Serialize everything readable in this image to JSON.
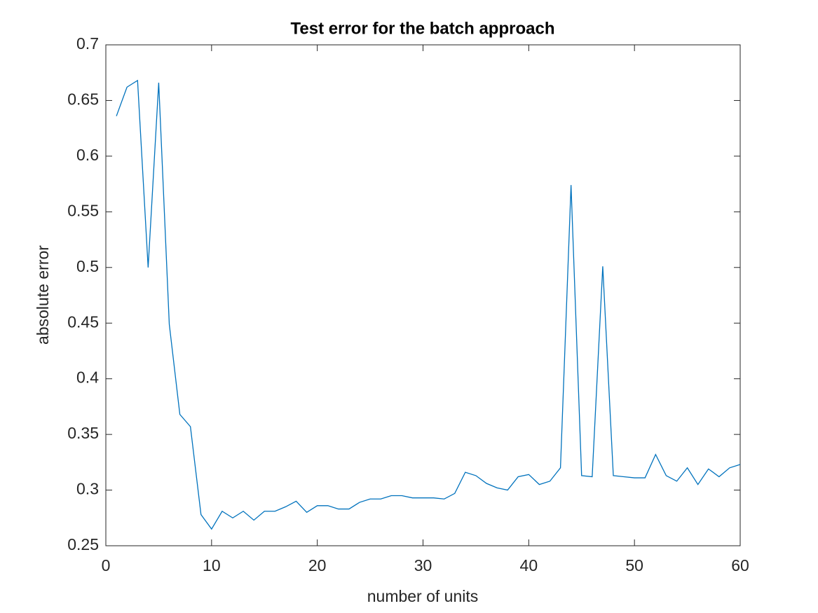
{
  "chart_data": {
    "type": "line",
    "title": "Test error for the batch approach",
    "x_label": "number of units",
    "y_label": "absolute error",
    "x": [
      1,
      2,
      3,
      4,
      5,
      6,
      7,
      8,
      9,
      10,
      11,
      12,
      13,
      14,
      15,
      16,
      17,
      18,
      19,
      20,
      21,
      22,
      23,
      24,
      25,
      26,
      27,
      28,
      29,
      30,
      31,
      32,
      33,
      34,
      35,
      36,
      37,
      38,
      39,
      40,
      41,
      42,
      43,
      44,
      45,
      46,
      47,
      48,
      49,
      50,
      51,
      52,
      53,
      54,
      55,
      56,
      57,
      58,
      59,
      60
    ],
    "series": [
      {
        "color": "#0072bd",
        "values": [
          0.636,
          0.662,
          0.668,
          0.5,
          0.666,
          0.449,
          0.368,
          0.357,
          0.278,
          0.265,
          0.281,
          0.275,
          0.281,
          0.273,
          0.281,
          0.281,
          0.285,
          0.29,
          0.28,
          0.286,
          0.286,
          0.283,
          0.283,
          0.289,
          0.292,
          0.292,
          0.295,
          0.295,
          0.293,
          0.293,
          0.293,
          0.292,
          0.297,
          0.316,
          0.313,
          0.306,
          0.302,
          0.3,
          0.312,
          0.314,
          0.305,
          0.308,
          0.32,
          0.574,
          0.313,
          0.312,
          0.501,
          0.313,
          0.312,
          0.311,
          0.311,
          0.332,
          0.313,
          0.308,
          0.32,
          0.305,
          0.319,
          0.312,
          0.32,
          0.323
        ]
      }
    ],
    "xlim": [
      0,
      60
    ],
    "xticks": [
      0,
      10,
      20,
      30,
      40,
      50,
      60
    ],
    "ylim": [
      0.25,
      0.7
    ],
    "yticks": [
      0.25,
      0.3,
      0.35,
      0.4,
      0.45,
      0.5,
      0.55,
      0.6,
      0.65,
      0.7
    ],
    "grid": false
  }
}
